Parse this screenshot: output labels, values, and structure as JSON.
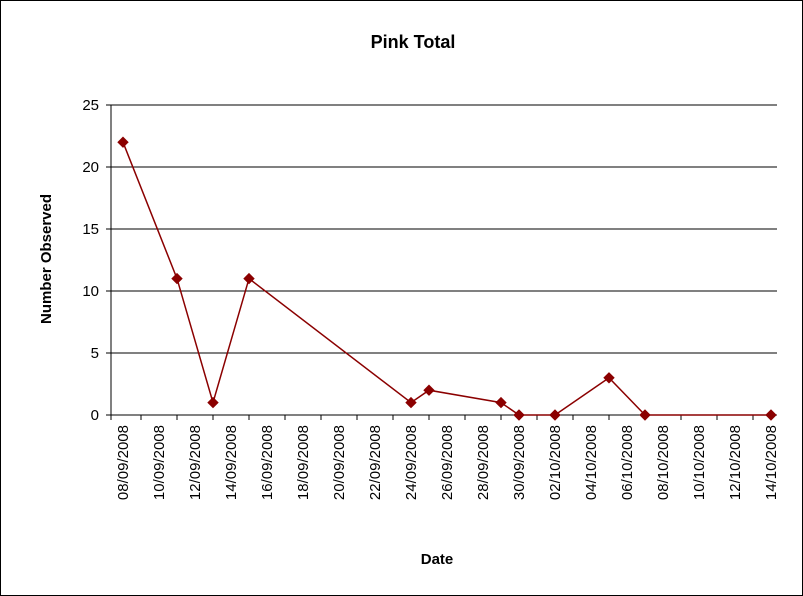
{
  "chart_data": {
    "type": "line",
    "title": "Pink Total",
    "xlabel": "Date",
    "ylabel": "Number Observed",
    "ylim": [
      0,
      25
    ],
    "y_ticks": [
      0,
      5,
      10,
      15,
      20,
      25
    ],
    "xlim": [
      "08/09/2008",
      "14/10/2008"
    ],
    "x_tick_labels": [
      "08/09/2008",
      "10/09/2008",
      "12/09/2008",
      "14/09/2008",
      "16/09/2008",
      "18/09/2008",
      "20/09/2008",
      "22/09/2008",
      "24/09/2008",
      "26/09/2008",
      "28/09/2008",
      "30/09/2008",
      "02/10/2008",
      "04/10/2008",
      "06/10/2008",
      "08/10/2008",
      "10/10/2008",
      "12/10/2008",
      "14/10/2008"
    ],
    "grid": "horizontal",
    "legend": "none",
    "series": [
      {
        "color": "#8B0000",
        "marker": "diamond",
        "x": [
          "08/09/2008",
          "11/09/2008",
          "13/09/2008",
          "15/09/2008",
          "24/09/2008",
          "25/09/2008",
          "29/09/2008",
          "30/09/2008",
          "02/10/2008",
          "05/10/2008",
          "07/10/2008",
          "14/10/2008"
        ],
        "values": [
          22,
          11,
          1,
          11,
          1,
          2,
          1,
          0,
          0,
          3,
          0,
          0
        ]
      }
    ]
  }
}
